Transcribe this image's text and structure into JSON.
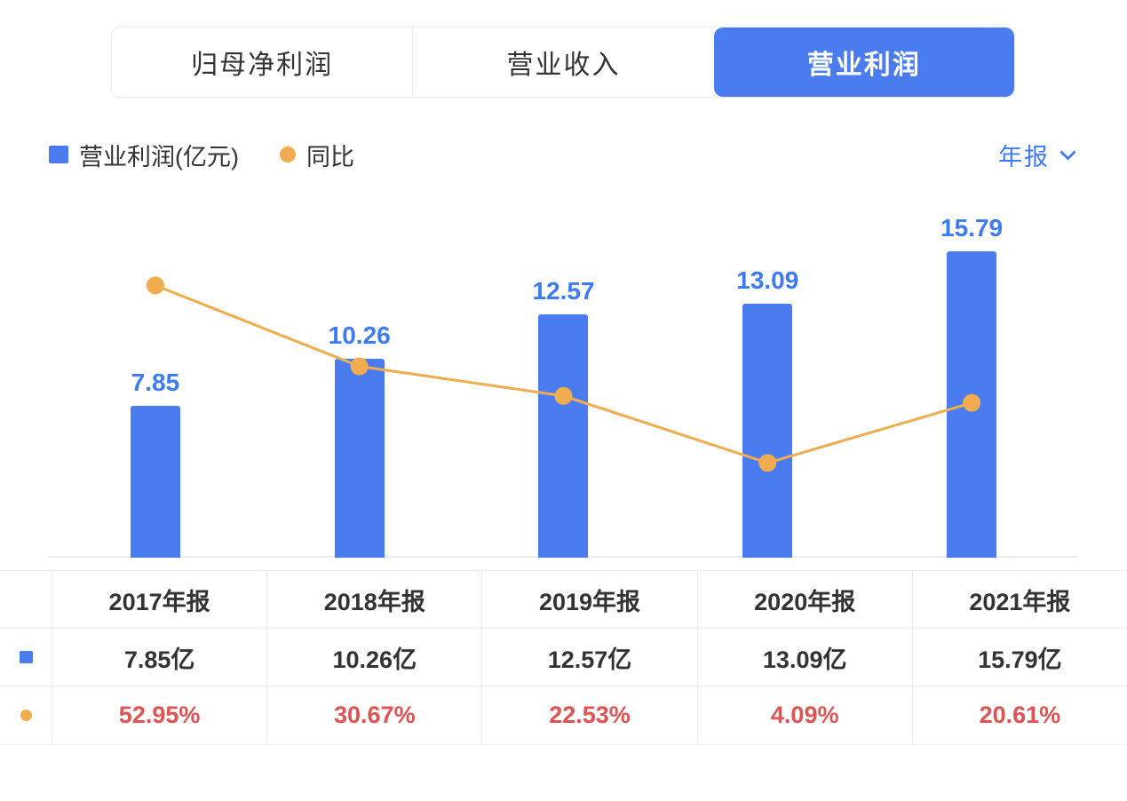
{
  "tabs": [
    {
      "label": "归母净利润",
      "active": false
    },
    {
      "label": "营业收入",
      "active": false
    },
    {
      "label": "营业利润",
      "active": true
    }
  ],
  "legend": {
    "bar_label": "营业利润(亿元)",
    "line_label": "同比",
    "period_label": "年报"
  },
  "colors": {
    "blue": "#4a7cf0",
    "orange": "#f0ac4e",
    "red": "#e05353",
    "label_blue": "#3d7bf5"
  },
  "chart_data": {
    "type": "bar",
    "categories": [
      "2017年报",
      "2018年报",
      "2019年报",
      "2020年报",
      "2021年报"
    ],
    "series": [
      {
        "name": "营业利润(亿元)",
        "type": "bar",
        "values": [
          7.85,
          10.26,
          12.57,
          13.09,
          15.79
        ],
        "labels": [
          "7.85",
          "10.26",
          "12.57",
          "13.09",
          "15.79"
        ],
        "color": "#4a7cf0"
      },
      {
        "name": "同比",
        "type": "line",
        "values": [
          52.95,
          30.67,
          22.53,
          4.09,
          20.61
        ],
        "unit": "%",
        "color": "#f0ac4e"
      }
    ],
    "title": "营业利润",
    "xlabel": "",
    "ylabel": "亿元",
    "ylim": [
      0,
      16.5
    ],
    "y2lim": [
      -22,
      66
    ],
    "grid": false,
    "legend_position": "top"
  },
  "table": {
    "header": [
      "",
      "2017年报",
      "2018年报",
      "2019年报",
      "2020年报",
      "2021年报"
    ],
    "rows": [
      {
        "marker": "bar",
        "cells": [
          "7.85亿",
          "10.26亿",
          "12.57亿",
          "13.09亿",
          "15.79亿"
        ]
      },
      {
        "marker": "line",
        "cells": [
          "52.95%",
          "30.67%",
          "22.53%",
          "4.09%",
          "20.61%"
        ]
      }
    ]
  }
}
